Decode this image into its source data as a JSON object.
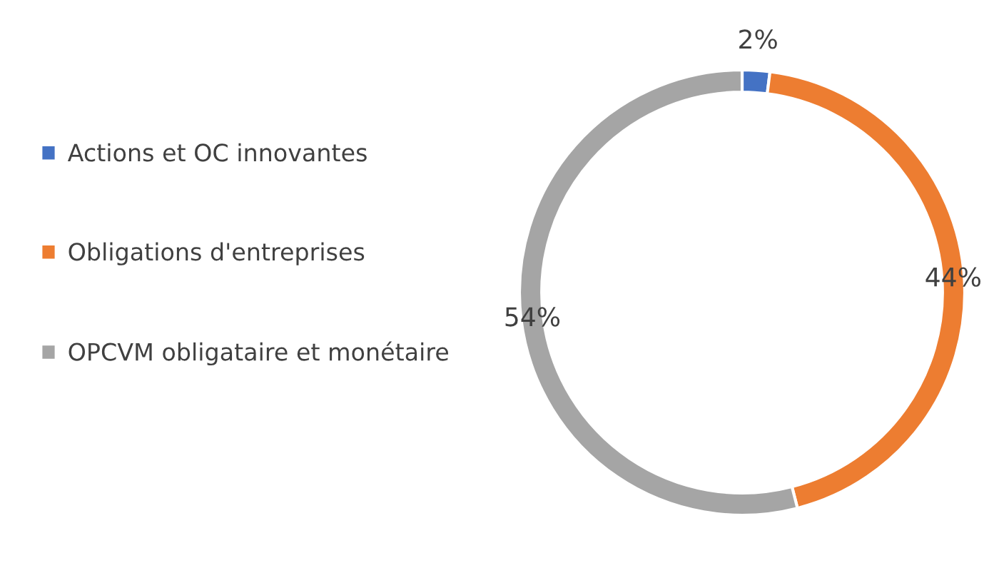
{
  "chart_data": {
    "type": "donut",
    "categories": [
      "Actions et OC innovantes",
      "Obligations d'entreprises",
      "OPCVM obligataire et monétaire"
    ],
    "values": [
      2,
      44,
      54
    ],
    "colors": [
      "#4472c4",
      "#ed7d31",
      "#a5a5a5"
    ],
    "value_labels": [
      "2%",
      "44%",
      "54%"
    ],
    "legend": "left"
  }
}
